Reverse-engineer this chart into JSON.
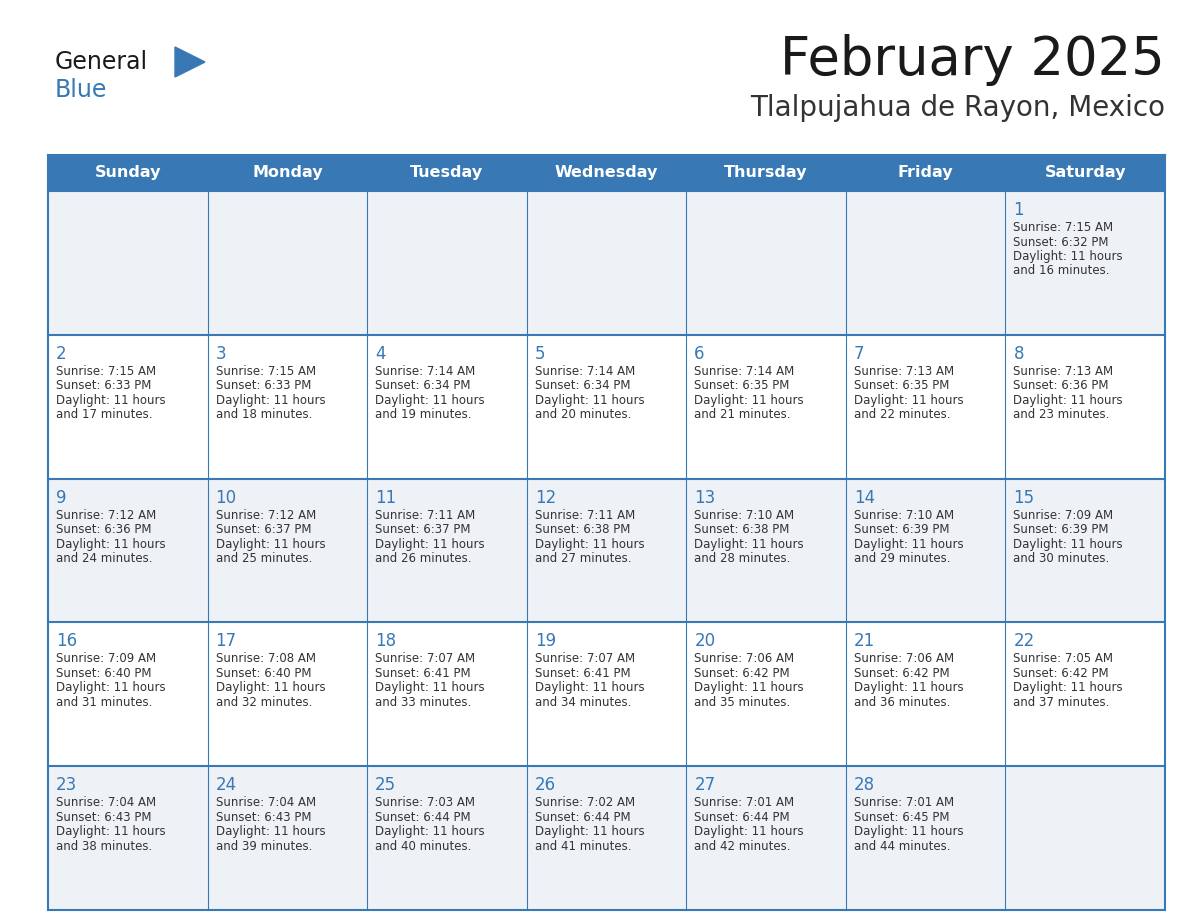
{
  "title": "February 2025",
  "subtitle": "Tlalpujahua de Rayon, Mexico",
  "header_bg": "#3878b4",
  "header_text_color": "#ffffff",
  "cell_bg_odd": "#eef2f7",
  "cell_bg_even": "#ffffff",
  "border_color": "#3878b4",
  "day_names": [
    "Sunday",
    "Monday",
    "Tuesday",
    "Wednesday",
    "Thursday",
    "Friday",
    "Saturday"
  ],
  "title_color": "#1a1a1a",
  "subtitle_color": "#333333",
  "number_color": "#3878b4",
  "text_color": "#333333",
  "calendar": [
    [
      null,
      null,
      null,
      null,
      null,
      null,
      {
        "day": "1",
        "sunrise": "7:15 AM",
        "sunset": "6:32 PM",
        "daylight_line1": "Daylight: 11 hours",
        "daylight_line2": "and 16 minutes."
      }
    ],
    [
      {
        "day": "2",
        "sunrise": "7:15 AM",
        "sunset": "6:33 PM",
        "daylight_line1": "Daylight: 11 hours",
        "daylight_line2": "and 17 minutes."
      },
      {
        "day": "3",
        "sunrise": "7:15 AM",
        "sunset": "6:33 PM",
        "daylight_line1": "Daylight: 11 hours",
        "daylight_line2": "and 18 minutes."
      },
      {
        "day": "4",
        "sunrise": "7:14 AM",
        "sunset": "6:34 PM",
        "daylight_line1": "Daylight: 11 hours",
        "daylight_line2": "and 19 minutes."
      },
      {
        "day": "5",
        "sunrise": "7:14 AM",
        "sunset": "6:34 PM",
        "daylight_line1": "Daylight: 11 hours",
        "daylight_line2": "and 20 minutes."
      },
      {
        "day": "6",
        "sunrise": "7:14 AM",
        "sunset": "6:35 PM",
        "daylight_line1": "Daylight: 11 hours",
        "daylight_line2": "and 21 minutes."
      },
      {
        "day": "7",
        "sunrise": "7:13 AM",
        "sunset": "6:35 PM",
        "daylight_line1": "Daylight: 11 hours",
        "daylight_line2": "and 22 minutes."
      },
      {
        "day": "8",
        "sunrise": "7:13 AM",
        "sunset": "6:36 PM",
        "daylight_line1": "Daylight: 11 hours",
        "daylight_line2": "and 23 minutes."
      }
    ],
    [
      {
        "day": "9",
        "sunrise": "7:12 AM",
        "sunset": "6:36 PM",
        "daylight_line1": "Daylight: 11 hours",
        "daylight_line2": "and 24 minutes."
      },
      {
        "day": "10",
        "sunrise": "7:12 AM",
        "sunset": "6:37 PM",
        "daylight_line1": "Daylight: 11 hours",
        "daylight_line2": "and 25 minutes."
      },
      {
        "day": "11",
        "sunrise": "7:11 AM",
        "sunset": "6:37 PM",
        "daylight_line1": "Daylight: 11 hours",
        "daylight_line2": "and 26 minutes."
      },
      {
        "day": "12",
        "sunrise": "7:11 AM",
        "sunset": "6:38 PM",
        "daylight_line1": "Daylight: 11 hours",
        "daylight_line2": "and 27 minutes."
      },
      {
        "day": "13",
        "sunrise": "7:10 AM",
        "sunset": "6:38 PM",
        "daylight_line1": "Daylight: 11 hours",
        "daylight_line2": "and 28 minutes."
      },
      {
        "day": "14",
        "sunrise": "7:10 AM",
        "sunset": "6:39 PM",
        "daylight_line1": "Daylight: 11 hours",
        "daylight_line2": "and 29 minutes."
      },
      {
        "day": "15",
        "sunrise": "7:09 AM",
        "sunset": "6:39 PM",
        "daylight_line1": "Daylight: 11 hours",
        "daylight_line2": "and 30 minutes."
      }
    ],
    [
      {
        "day": "16",
        "sunrise": "7:09 AM",
        "sunset": "6:40 PM",
        "daylight_line1": "Daylight: 11 hours",
        "daylight_line2": "and 31 minutes."
      },
      {
        "day": "17",
        "sunrise": "7:08 AM",
        "sunset": "6:40 PM",
        "daylight_line1": "Daylight: 11 hours",
        "daylight_line2": "and 32 minutes."
      },
      {
        "day": "18",
        "sunrise": "7:07 AM",
        "sunset": "6:41 PM",
        "daylight_line1": "Daylight: 11 hours",
        "daylight_line2": "and 33 minutes."
      },
      {
        "day": "19",
        "sunrise": "7:07 AM",
        "sunset": "6:41 PM",
        "daylight_line1": "Daylight: 11 hours",
        "daylight_line2": "and 34 minutes."
      },
      {
        "day": "20",
        "sunrise": "7:06 AM",
        "sunset": "6:42 PM",
        "daylight_line1": "Daylight: 11 hours",
        "daylight_line2": "and 35 minutes."
      },
      {
        "day": "21",
        "sunrise": "7:06 AM",
        "sunset": "6:42 PM",
        "daylight_line1": "Daylight: 11 hours",
        "daylight_line2": "and 36 minutes."
      },
      {
        "day": "22",
        "sunrise": "7:05 AM",
        "sunset": "6:42 PM",
        "daylight_line1": "Daylight: 11 hours",
        "daylight_line2": "and 37 minutes."
      }
    ],
    [
      {
        "day": "23",
        "sunrise": "7:04 AM",
        "sunset": "6:43 PM",
        "daylight_line1": "Daylight: 11 hours",
        "daylight_line2": "and 38 minutes."
      },
      {
        "day": "24",
        "sunrise": "7:04 AM",
        "sunset": "6:43 PM",
        "daylight_line1": "Daylight: 11 hours",
        "daylight_line2": "and 39 minutes."
      },
      {
        "day": "25",
        "sunrise": "7:03 AM",
        "sunset": "6:44 PM",
        "daylight_line1": "Daylight: 11 hours",
        "daylight_line2": "and 40 minutes."
      },
      {
        "day": "26",
        "sunrise": "7:02 AM",
        "sunset": "6:44 PM",
        "daylight_line1": "Daylight: 11 hours",
        "daylight_line2": "and 41 minutes."
      },
      {
        "day": "27",
        "sunrise": "7:01 AM",
        "sunset": "6:44 PM",
        "daylight_line1": "Daylight: 11 hours",
        "daylight_line2": "and 42 minutes."
      },
      {
        "day": "28",
        "sunrise": "7:01 AM",
        "sunset": "6:45 PM",
        "daylight_line1": "Daylight: 11 hours",
        "daylight_line2": "and 44 minutes."
      },
      null
    ]
  ]
}
